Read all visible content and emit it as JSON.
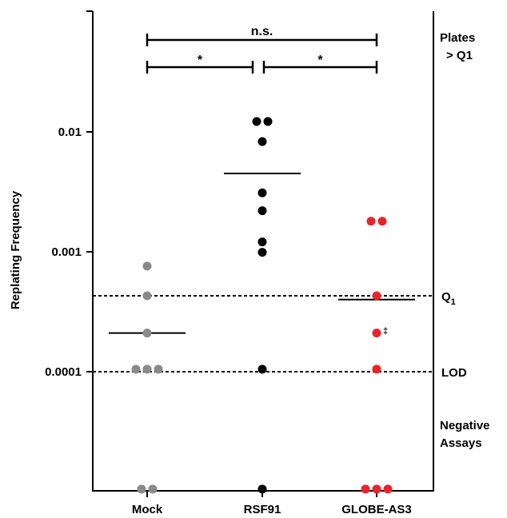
{
  "chart_data": {
    "type": "scatter",
    "y_scale": "log",
    "ylabel": "Replating Frequency",
    "yticks": [
      {
        "value": 0.01,
        "label": "0.01"
      },
      {
        "value": 0.001,
        "label": "0.001"
      },
      {
        "value": 0.0001,
        "label": "0.0001"
      }
    ],
    "categories": [
      "Mock",
      "RSF91",
      "GLOBE-AS3"
    ],
    "series": [
      {
        "category": "Mock",
        "color": "#8a8a8a",
        "points": [
          0.00076,
          0.00043,
          0.00021,
          0.000105,
          0.000105,
          0.000105,
          1.05e-05,
          1.05e-05
        ],
        "mean": 0.00021
      },
      {
        "category": "RSF91",
        "color": "#000000",
        "points": [
          0.0122,
          0.0122,
          0.0083,
          0.0031,
          0.0022,
          0.00121,
          0.00099,
          0.000105,
          1.05e-05
        ],
        "mean": 0.0045
      },
      {
        "category": "GLOBE-AS3",
        "color": "#e8242a",
        "points": [
          0.0018,
          0.0018,
          0.00043,
          0.00021,
          0.000105,
          1.05e-05,
          1.05e-05,
          1.05e-05
        ],
        "mean": 0.0004
      }
    ],
    "reference_lines": [
      {
        "value": 0.00043,
        "label": "Q",
        "subscript": "1"
      },
      {
        "value": 0.0001,
        "label": "LOD"
      }
    ],
    "right_annotations": {
      "plates": [
        "Plates",
        "> Q1"
      ],
      "negative": [
        "Negative",
        "Assays"
      ]
    },
    "point_mark": {
      "category": "GLOBE-AS3",
      "value": 0.00021,
      "symbol": "‡"
    },
    "significance": [
      {
        "from": "Mock",
        "to": "GLOBE-AS3",
        "label": "n.s."
      },
      {
        "from": "Mock",
        "to": "RSF91",
        "label": "*"
      },
      {
        "from": "RSF91",
        "to": "GLOBE-AS3",
        "label": "*"
      }
    ]
  }
}
